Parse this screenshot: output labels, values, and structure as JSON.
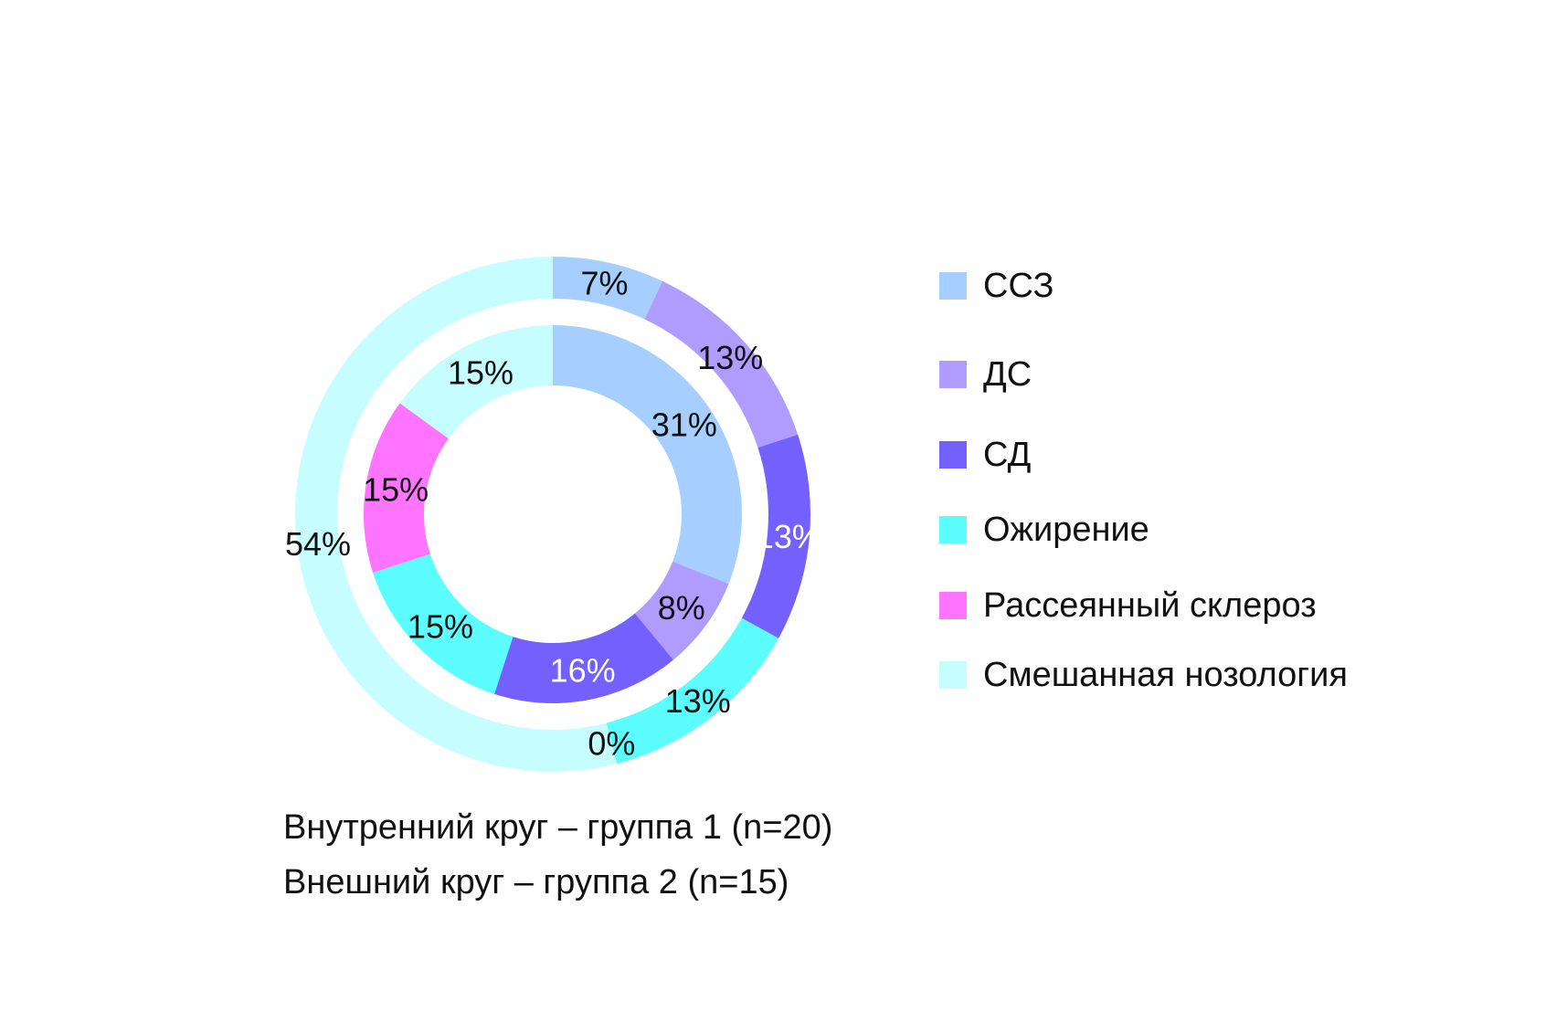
{
  "chart_data": {
    "type": "donut",
    "categories": [
      "ССЗ",
      "ДС",
      "СД",
      "Ожирение",
      "Рассеянный склероз",
      "Смешанная нозология"
    ],
    "colors": [
      "#a6cfff",
      "#b09bff",
      "#7360ff",
      "#5cfdff",
      "#ff74ff",
      "#c6fdff"
    ],
    "series": [
      {
        "name": "Внутренний круг",
        "ring": "inner",
        "values": [
          31,
          8,
          16,
          15,
          15,
          15
        ],
        "labels": [
          "31%",
          "8%",
          "16%",
          "15%",
          "15%",
          "15%"
        ],
        "label_colors": [
          "#111111",
          "#111111",
          "#ffffff",
          "#111111",
          "#111111",
          "#111111"
        ]
      },
      {
        "name": "Внешний круг",
        "ring": "outer",
        "values": [
          7,
          13,
          13,
          13,
          0,
          54
        ],
        "labels": [
          "7%",
          "13%",
          "13%",
          "13%",
          "0%",
          "54%"
        ],
        "label_colors": [
          "#111111",
          "#111111",
          "#ffffff",
          "#111111",
          "#111111",
          "#111111"
        ]
      }
    ],
    "legend_position": "right",
    "captions": [
      "Внутренний круг – группа 1 (n=20)",
      "Внешний круг – группа 2 (n=15)"
    ]
  }
}
